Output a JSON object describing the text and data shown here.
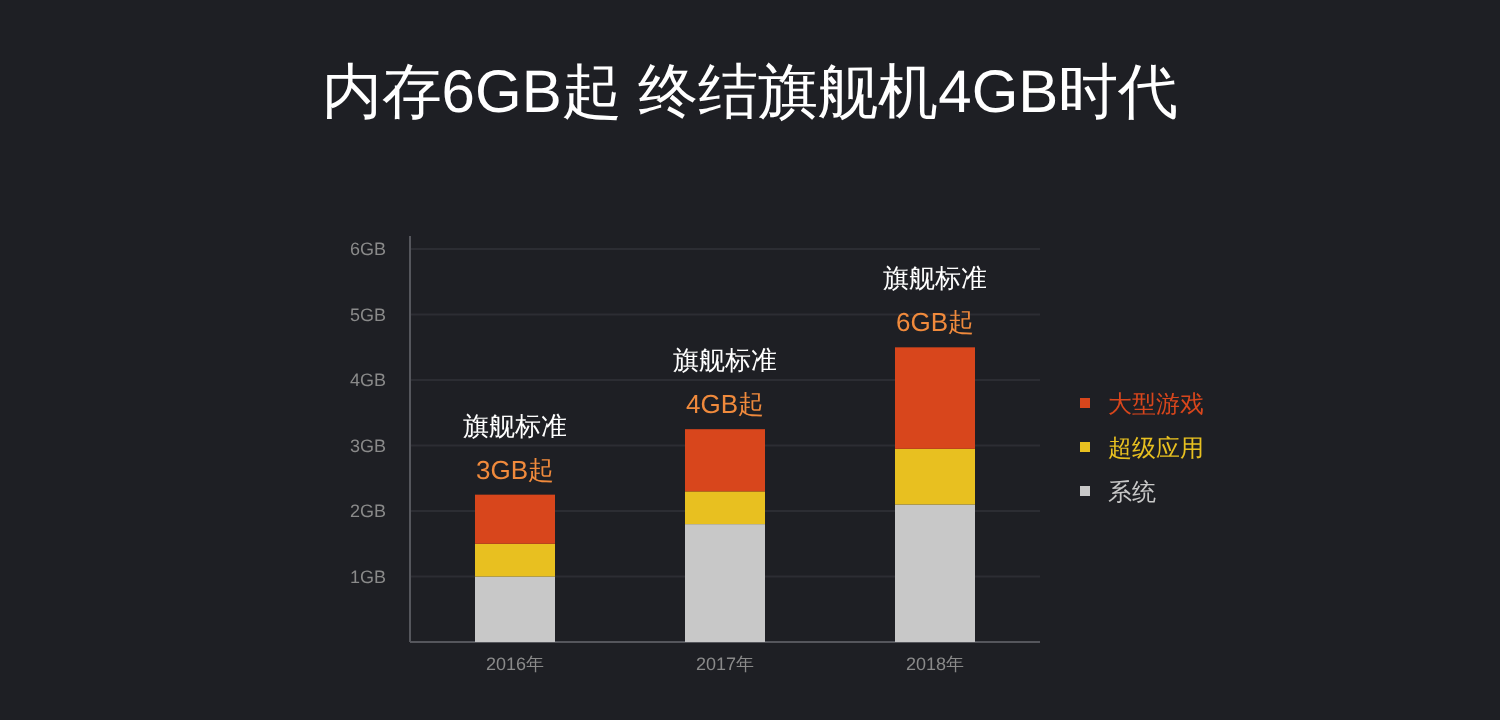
{
  "chart_data": {
    "type": "bar",
    "title": "内存6GB起 终结旗舰机4GB时代",
    "stacked": true,
    "categories": [
      "2016年",
      "2017年",
      "2018年"
    ],
    "series": [
      {
        "name": "系统",
        "color": "#c8c8c8",
        "values": [
          1.0,
          1.8,
          2.1
        ]
      },
      {
        "name": "超级应用",
        "color": "#e8c020",
        "values": [
          0.5,
          0.5,
          0.85
        ]
      },
      {
        "name": "大型游戏",
        "color": "#d8461c",
        "values": [
          0.75,
          0.95,
          1.55
        ]
      }
    ],
    "ylim": [
      0,
      6.2
    ],
    "yticks": [
      {
        "value": 1,
        "label": "1GB"
      },
      {
        "value": 2,
        "label": "2GB"
      },
      {
        "value": 3,
        "label": "3GB"
      },
      {
        "value": 4,
        "label": "4GB"
      },
      {
        "value": 5,
        "label": "5GB"
      },
      {
        "value": 6,
        "label": "6GB"
      }
    ],
    "grid": "y",
    "legend": "right",
    "marker": "square",
    "annotations": [
      {
        "text": "旗舰标准",
        "x": "2016年",
        "y": 2.25
      },
      {
        "text": "3GB起",
        "x": "2016年",
        "y": 2.25
      },
      {
        "text": "旗舰标准",
        "x": "2017年",
        "y": 3.25
      },
      {
        "text": "4GB起",
        "x": "2017年",
        "y": 3.25
      },
      {
        "text": "旗舰标准",
        "x": "2018年",
        "y": 4.5
      },
      {
        "text": "6GB起",
        "x": "2018年",
        "y": 4.5
      }
    ]
  }
}
